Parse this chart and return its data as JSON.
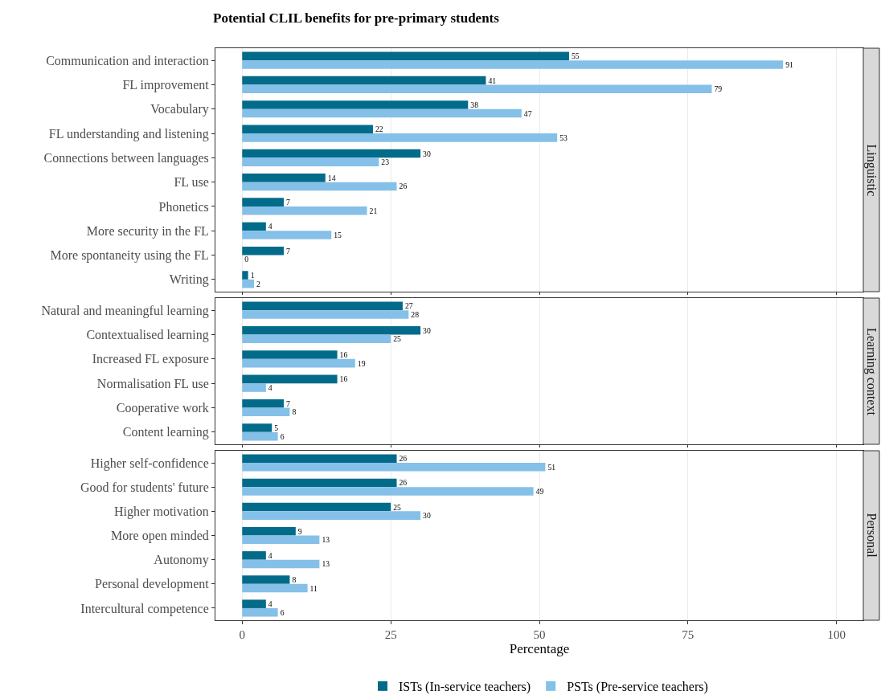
{
  "chart_data": [
    {
      "type": "bar",
      "orientation": "horizontal",
      "title": "Potential CLIL benefits for pre-primary students",
      "subtitle": "Linguistic",
      "categories": [
        "Communication and interaction",
        "FL improvement",
        "Vocabulary",
        "FL understanding and listening",
        "Connections between languages",
        "FL use",
        "Phonetics",
        "More security in the FL",
        "More spontaneity using the FL",
        "Writing"
      ],
      "series": [
        {
          "color": "#036b8a",
          "values": [
            55,
            41,
            38,
            22,
            30,
            14,
            7,
            4,
            7,
            1
          ]
        },
        {
          "color": "#85c0e8",
          "values": [
            91,
            79,
            47,
            53,
            23,
            26,
            21,
            15,
            0,
            2
          ]
        }
      ],
      "xlim": [
        -4.5,
        104.5
      ],
      "xticks": [
        0,
        25,
        50,
        75,
        100
      ],
      "grid": "x",
      "data_labels": true,
      "tick_labels": "y"
    },
    {
      "type": "bar",
      "orientation": "horizontal",
      "subtitle": "Learning context",
      "categories": [
        "Natural and meaningful learning",
        "Contextualised learning",
        "Increased FL exposure",
        "Normalisation FL use",
        "Cooperative work",
        "Content learning"
      ],
      "series": [
        {
          "color": "#036b8a",
          "values": [
            27,
            30,
            16,
            16,
            7,
            5
          ]
        },
        {
          "color": "#85c0e8",
          "values": [
            28,
            25,
            19,
            4,
            8,
            6
          ]
        }
      ],
      "xlim": [
        -4.5,
        104.5
      ],
      "xticks": [
        0,
        25,
        50,
        75,
        100
      ],
      "grid": "x",
      "data_labels": true,
      "tick_labels": "y"
    },
    {
      "type": "bar",
      "orientation": "horizontal",
      "subtitle": "Personal",
      "xlabel": "Percentage",
      "categories": [
        "Higher self-confidence",
        "Good for students' future",
        "Higher motivation",
        "More open minded",
        "Autonomy",
        "Personal development",
        "Intercultural competence"
      ],
      "series": [
        {
          "name": "ISTs (In-service teachers)",
          "color": "#036b8a",
          "values": [
            26,
            26,
            25,
            9,
            4,
            8,
            4
          ]
        },
        {
          "name": "PSTs (Pre-service teachers)",
          "color": "#85c0e8",
          "values": [
            51,
            49,
            30,
            13,
            13,
            11,
            6
          ]
        }
      ],
      "xlim": [
        -4.5,
        104.5
      ],
      "xticks": [
        0,
        25,
        50,
        75,
        100
      ],
      "grid": "x",
      "data_labels": true,
      "legend": "bottom"
    }
  ]
}
